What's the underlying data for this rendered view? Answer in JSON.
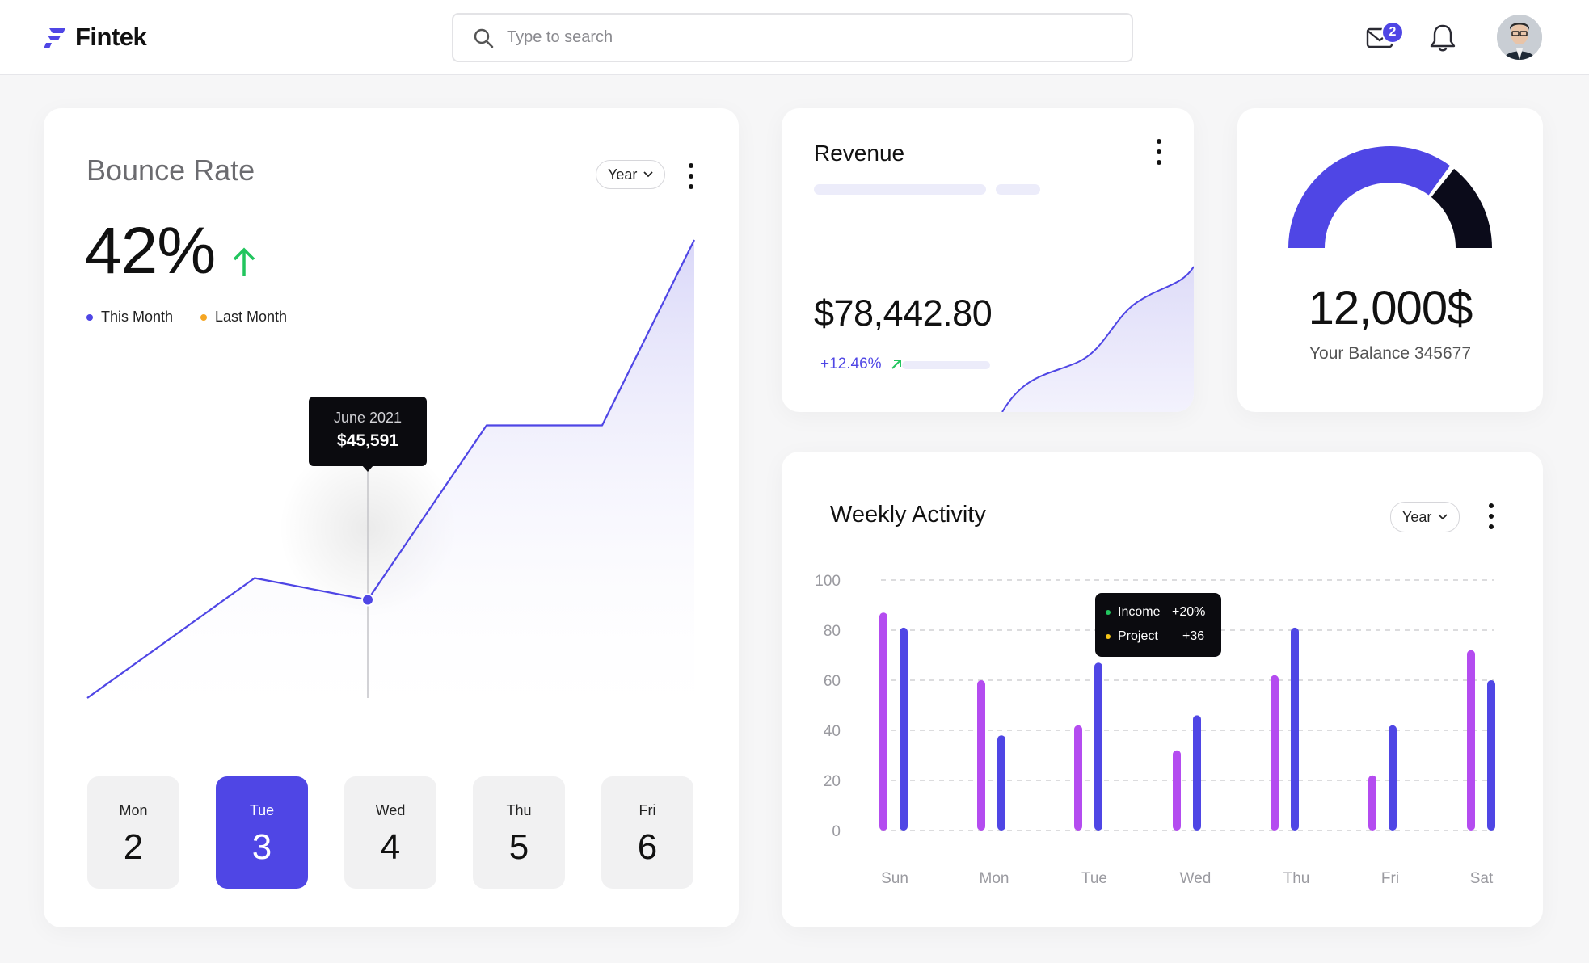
{
  "header": {
    "logo_text": "Fintek",
    "search_placeholder": "Type to search",
    "mail_badge": "2",
    "icons": [
      "search-icon",
      "mail-icon",
      "bell-icon",
      "avatar"
    ]
  },
  "colors": {
    "primary": "#4f46e5",
    "purple": "#b44cf0",
    "dark": "#0b0b1a",
    "green": "#22c55e",
    "orange": "#f5a623"
  },
  "bounce": {
    "title": "Bounce Rate",
    "filter": "Year",
    "value": "42%",
    "legend": [
      "This Month",
      "Last Month"
    ],
    "tooltip_date": "June 2021",
    "tooltip_value": "$45,591",
    "days": [
      {
        "name": "Mon",
        "num": "2",
        "active": false
      },
      {
        "name": "Tue",
        "num": "3",
        "active": true
      },
      {
        "name": "Wed",
        "num": "4",
        "active": false
      },
      {
        "name": "Thu",
        "num": "5",
        "active": false
      },
      {
        "name": "Fri",
        "num": "6",
        "active": false
      }
    ]
  },
  "revenue": {
    "title": "Revenue",
    "amount": "$78,442.80",
    "change": "+12.46%"
  },
  "balance": {
    "amount": "12,000$",
    "label": "Your Balance 345677",
    "gauge_fraction": 0.7
  },
  "weekly": {
    "title": "Weekly Activity",
    "filter": "Year",
    "tooltip": [
      {
        "label": "Income",
        "value": "+20%",
        "color": "#22c55e"
      },
      {
        "label": "Project",
        "value": "+36",
        "color": "#f5c518"
      }
    ]
  },
  "chart_data": [
    {
      "type": "area",
      "title": "Bounce Rate",
      "series": [
        {
          "name": "This Month",
          "values": [
            0,
            22,
            18,
            50,
            50,
            84
          ]
        }
      ],
      "ylim": [
        0,
        84
      ],
      "highlight": {
        "index": 2,
        "label": "June 2021",
        "value": "$45,591"
      }
    },
    {
      "type": "bar",
      "title": "Weekly Activity",
      "categories": [
        "Sun",
        "Mon",
        "Tue",
        "Wed",
        "Thu",
        "Fri",
        "Sat"
      ],
      "series": [
        {
          "values": [
            87,
            60,
            42,
            32,
            62,
            22,
            72
          ]
        },
        {
          "values": [
            81,
            38,
            67,
            46,
            81,
            42,
            60
          ]
        }
      ],
      "yticks": [
        "0",
        "20",
        "40",
        "60",
        "80",
        "100"
      ],
      "ylim": [
        0,
        100
      ],
      "grid": true
    }
  ]
}
